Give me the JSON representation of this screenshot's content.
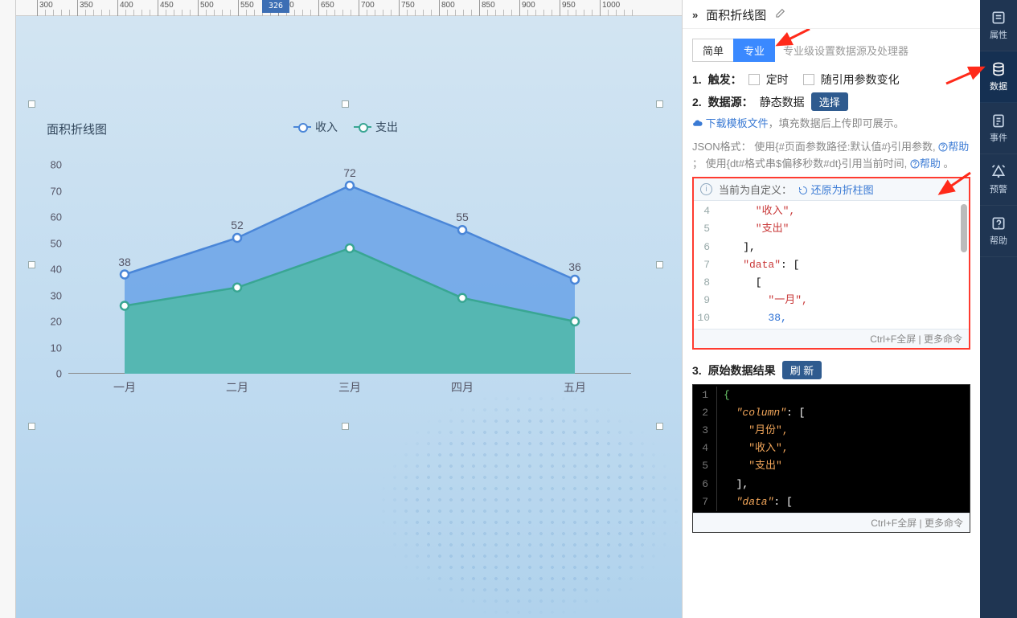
{
  "ruler": {
    "cursor_value": "326",
    "start": 300,
    "step": 50,
    "end": 1000
  },
  "chart": {
    "type": "area",
    "title": "面积折线图",
    "legend": [
      {
        "label": "收入",
        "color": "#4a86d8"
      },
      {
        "label": "支出",
        "color": "#39a693"
      }
    ],
    "x_categories": [
      "一月",
      "二月",
      "三月",
      "四月",
      "五月"
    ],
    "series": [
      {
        "name": "收入",
        "values": [
          38,
          52,
          72,
          55,
          36
        ],
        "color": "#4a86d8",
        "area_fill": "#6aa3e8"
      },
      {
        "name": "支出",
        "values": [
          26,
          33,
          48,
          29,
          20
        ],
        "color": "#39a693",
        "area_fill": "#4fb8a8"
      }
    ],
    "value_labels": [
      38,
      52,
      72,
      55,
      36
    ],
    "ylim": [
      0,
      80
    ],
    "ytick_step": 10,
    "background_color": "transparent",
    "point_radius": 5,
    "line_width": 2.5,
    "area_opacity": 0.85,
    "title_fontsize": 15,
    "axis_color": "#888888"
  },
  "panel": {
    "chevron": "»",
    "title": "面积折线图",
    "edit_icon": "pencil-icon",
    "mode_tabs": {
      "simple": "简单",
      "pro": "专业",
      "active": "pro"
    },
    "mode_hint": "专业级设置数据源及处理器",
    "section1": {
      "num": "1.",
      "label": "触发：",
      "opt1": "定时",
      "opt2": "随引用参数变化"
    },
    "section2": {
      "num": "2.",
      "label": "数据源：",
      "value": "静态数据",
      "select_btn": "选择",
      "dl_template": "下载模板文件",
      "dl_after": "，填充数据后上传即可展示。",
      "json_fmt1": "JSON格式：  使用{#页面参数路径:默认值#}引用参数,",
      "help": "帮助",
      "json_fmt2": "；  使用{dt#格式串$偏移秒数#dt}引用当前时间,"
    },
    "codebox1": {
      "head_text": "当前为自定义：",
      "head_link": "还原为折柱图",
      "lines": [
        {
          "n": 4,
          "indent": 3,
          "tok": "str",
          "text": "\"收入\",",
          "trailing": ""
        },
        {
          "n": 5,
          "indent": 3,
          "tok": "str",
          "text": "\"支出\"",
          "trailing": ""
        },
        {
          "n": 6,
          "indent": 2,
          "tok": "plain",
          "text": "],",
          "trailing": ""
        },
        {
          "n": 7,
          "indent": 2,
          "tok": "key",
          "text": "\"data\": [",
          "trailing": ""
        },
        {
          "n": 8,
          "indent": 3,
          "tok": "plain",
          "text": "[",
          "trailing": ""
        },
        {
          "n": 9,
          "indent": 4,
          "tok": "str",
          "text": "\"一月\",",
          "trailing": ""
        },
        {
          "n": 10,
          "indent": 4,
          "tok": "num",
          "text": "38,",
          "trailing": ""
        }
      ],
      "foot": "Ctrl+F全屏 | 更多命令"
    },
    "section3": {
      "num": "3.",
      "label": "原始数据结果",
      "refresh_btn": "刷 新"
    },
    "codebox2": {
      "lines": [
        {
          "n": 1,
          "indent": 0,
          "tok": "br",
          "text": "{"
        },
        {
          "n": 2,
          "indent": 1,
          "tok": "key",
          "text": "\"column\": ["
        },
        {
          "n": 3,
          "indent": 2,
          "tok": "str",
          "text": "\"月份\","
        },
        {
          "n": 4,
          "indent": 2,
          "tok": "str",
          "text": "\"收入\","
        },
        {
          "n": 5,
          "indent": 2,
          "tok": "str",
          "text": "\"支出\""
        },
        {
          "n": 6,
          "indent": 1,
          "tok": "plain",
          "text": "],"
        },
        {
          "n": 7,
          "indent": 1,
          "tok": "key",
          "text": "\"data\": ["
        }
      ],
      "foot": "Ctrl+F全屏 | 更多命令"
    }
  },
  "sidetabs": [
    {
      "id": "attrs",
      "label": "属性",
      "icon": "props-icon"
    },
    {
      "id": "data",
      "label": "数据",
      "icon": "db-icon",
      "active": true
    },
    {
      "id": "events",
      "label": "事件",
      "icon": "event-icon"
    },
    {
      "id": "alert",
      "label": "预警",
      "icon": "alarm-icon"
    },
    {
      "id": "help",
      "label": "帮助",
      "icon": "help-icon"
    }
  ],
  "annotations": {
    "arrow_top_panel": true,
    "arrow_right_tabs": true,
    "arrow_into_codebox": true,
    "codebox1_border_color": "#ff3b30"
  }
}
